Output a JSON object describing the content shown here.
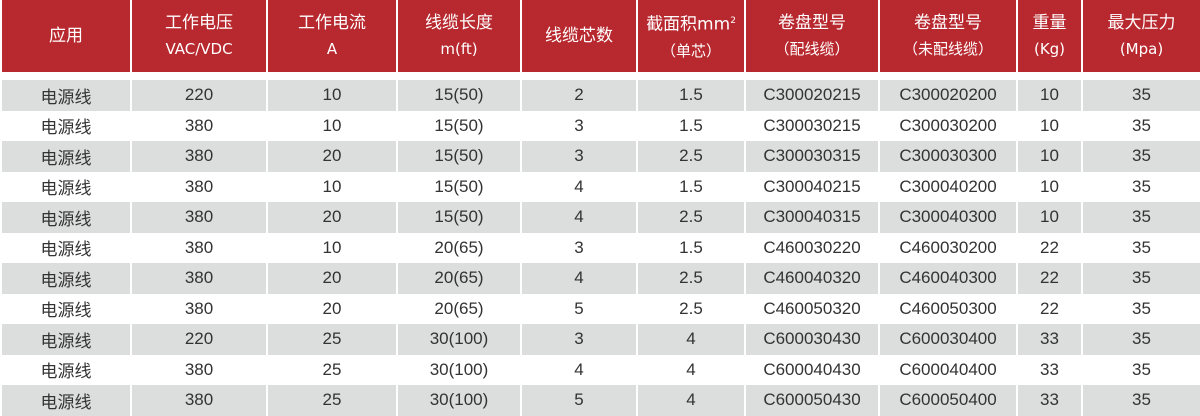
{
  "colors": {
    "header": "#b8282f",
    "stripe": "#dcdddd"
  },
  "headers": [
    {
      "l1": "应用",
      "l2": ""
    },
    {
      "l1": "工作电压",
      "l2": "VAC/VDC"
    },
    {
      "l1": "工作电流",
      "l2": "A"
    },
    {
      "l1": "线缆长度",
      "l2": "m(ft)"
    },
    {
      "l1": "线缆芯数",
      "l2": ""
    },
    {
      "l1": "截面积mm",
      "sup": "2",
      "l2": "（单芯）"
    },
    {
      "l1": "卷盘型号",
      "l2": "（配线缆）"
    },
    {
      "l1": "卷盘型号",
      "l2": "（未配线缆）"
    },
    {
      "l1": "重量",
      "l2": "(Kg)"
    },
    {
      "l1": "最大压力",
      "l2": "(Mpa)"
    }
  ],
  "rows": [
    [
      "电源线",
      "220",
      "10",
      "15(50)",
      "2",
      "1.5",
      "C300020215",
      "C300020200",
      "10",
      "35"
    ],
    [
      "电源线",
      "380",
      "10",
      "15(50)",
      "3",
      "1.5",
      "C300030215",
      "C300030200",
      "10",
      "35"
    ],
    [
      "电源线",
      "380",
      "20",
      "15(50)",
      "3",
      "2.5",
      "C300030315",
      "C300030300",
      "10",
      "35"
    ],
    [
      "电源线",
      "380",
      "10",
      "15(50)",
      "4",
      "1.5",
      "C300040215",
      "C300040200",
      "10",
      "35"
    ],
    [
      "电源线",
      "380",
      "20",
      "15(50)",
      "4",
      "2.5",
      "C300040315",
      "C300040300",
      "10",
      "35"
    ],
    [
      "电源线",
      "380",
      "10",
      "20(65)",
      "3",
      "1.5",
      "C460030220",
      "C460030200",
      "22",
      "35"
    ],
    [
      "电源线",
      "380",
      "20",
      "20(65)",
      "4",
      "2.5",
      "C460040320",
      "C460040300",
      "22",
      "35"
    ],
    [
      "电源线",
      "380",
      "20",
      "20(65)",
      "5",
      "2.5",
      "C460050320",
      "C460050300",
      "22",
      "35"
    ],
    [
      "电源线",
      "220",
      "25",
      "30(100)",
      "3",
      "4",
      "C600030430",
      "C600030400",
      "33",
      "35"
    ],
    [
      "电源线",
      "380",
      "25",
      "30(100)",
      "4",
      "4",
      "C600040430",
      "C600040400",
      "33",
      "35"
    ],
    [
      "电源线",
      "380",
      "25",
      "30(100)",
      "5",
      "4",
      "C600050430",
      "C600050400",
      "33",
      "35"
    ]
  ]
}
